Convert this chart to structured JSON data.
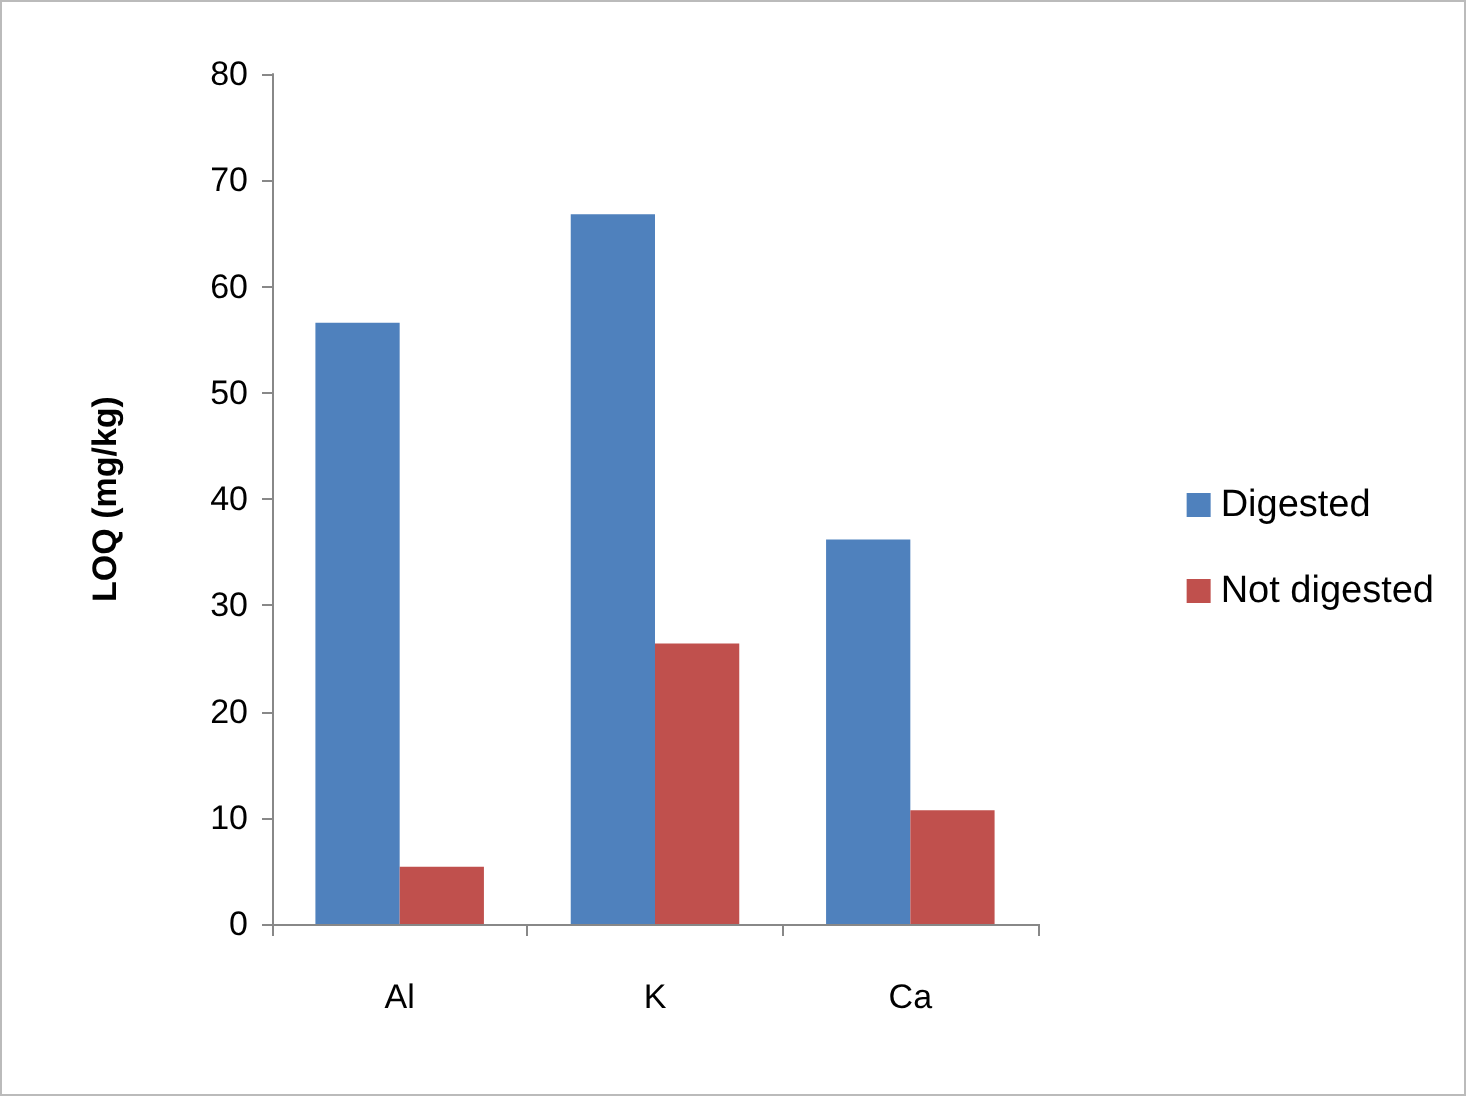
{
  "chart_data": {
    "type": "bar",
    "ylabel": "LOQ (mg/kg)",
    "categories": [
      "Al",
      "K",
      "Ca"
    ],
    "series": [
      {
        "name": "Digested",
        "color": "#4f81bd",
        "values": [
          56.6,
          66.8,
          36.2
        ]
      },
      {
        "name": "Not digested",
        "color": "#c0504d",
        "values": [
          5.4,
          26.4,
          10.7
        ]
      }
    ],
    "ylim": [
      0,
      80
    ],
    "yticks": [
      0,
      10,
      20,
      30,
      40,
      50,
      60,
      70,
      80
    ],
    "grid": false,
    "legend": "right"
  }
}
